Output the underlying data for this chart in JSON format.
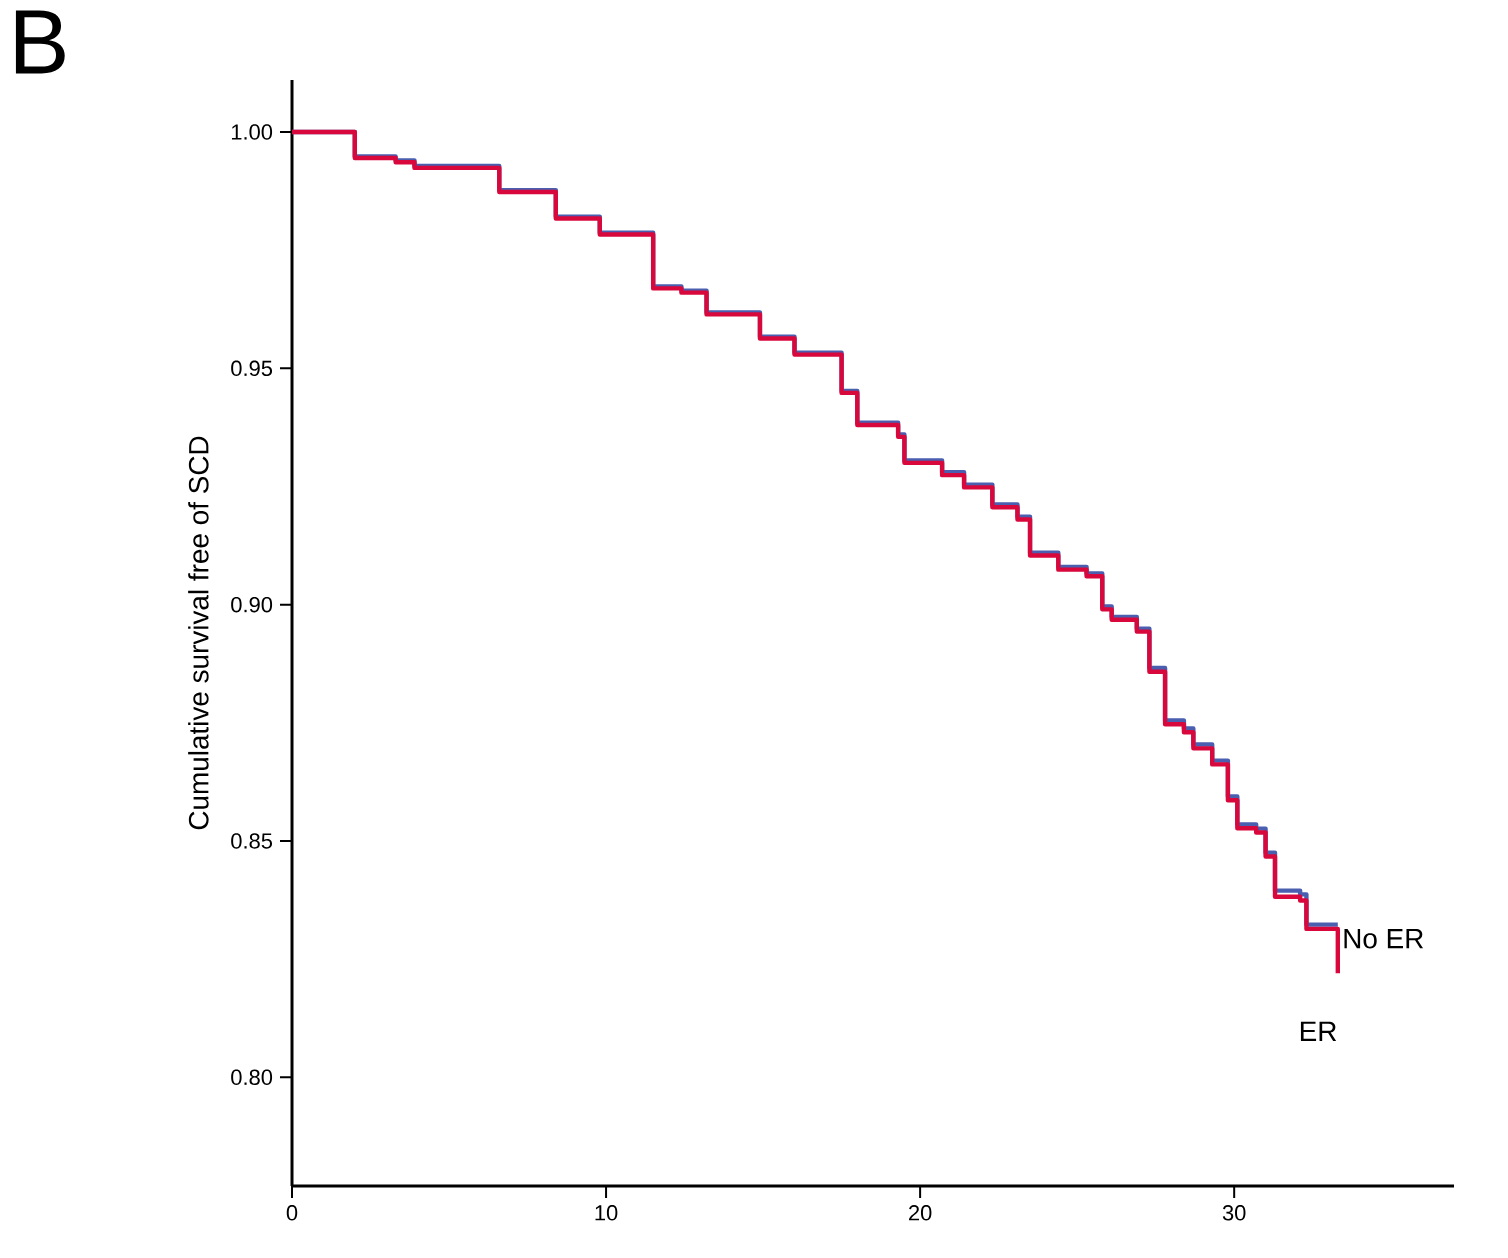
{
  "chart_data": {
    "type": "step",
    "title": "B",
    "ylabel": "Cumulative survival free of SCD",
    "xlim": [
      0,
      37
    ],
    "ylim": [
      0.777,
      1.011
    ],
    "xticks": [
      0,
      10,
      20,
      30
    ],
    "yticks": [
      {
        "value": 0.8,
        "label": "0.80"
      },
      {
        "value": 0.85,
        "label": "0.85"
      },
      {
        "value": 0.9,
        "label": "0.90"
      },
      {
        "value": 0.95,
        "label": "0.95"
      },
      {
        "value": 1.0,
        "label": "1.00"
      }
    ],
    "grid": false,
    "legend": false,
    "marker": "none",
    "line_style": "solid",
    "series": [
      {
        "name": "No ER",
        "color": "#4a5fb0",
        "x": [
          0,
          2.0,
          3.3,
          3.9,
          6.6,
          8.4,
          9.8,
          11.5,
          12.4,
          13.2,
          14.9,
          16.0,
          17.5,
          18.0,
          19.3,
          19.5,
          20.7,
          21.4,
          22.3,
          23.1,
          23.5,
          24.4,
          25.3,
          25.8,
          26.1,
          26.9,
          27.3,
          27.8,
          28.4,
          28.7,
          29.3,
          29.8,
          30.1,
          30.7,
          31.0,
          31.3,
          32.1,
          32.3,
          33.3
        ],
        "values": [
          1.0,
          0.9948,
          0.994,
          0.9928,
          0.9877,
          0.9821,
          0.9787,
          0.9673,
          0.9664,
          0.9618,
          0.9567,
          0.9533,
          0.9452,
          0.9385,
          0.936,
          0.9305,
          0.928,
          0.9254,
          0.9212,
          0.9186,
          0.911,
          0.908,
          0.9066,
          0.8996,
          0.8974,
          0.8949,
          0.8866,
          0.8755,
          0.8738,
          0.8704,
          0.867,
          0.8594,
          0.8535,
          0.8526,
          0.8475,
          0.8395,
          0.8387,
          0.8323,
          0.8323
        ]
      },
      {
        "name": "ER",
        "color": "#d9083c",
        "x": [
          0,
          2.0,
          3.3,
          3.9,
          6.6,
          8.4,
          9.8,
          11.5,
          12.4,
          13.2,
          14.9,
          16.0,
          17.5,
          18.0,
          19.3,
          19.5,
          20.7,
          21.4,
          22.3,
          23.1,
          23.5,
          24.4,
          25.3,
          25.8,
          26.1,
          26.9,
          27.3,
          27.8,
          28.4,
          28.7,
          29.3,
          29.8,
          30.1,
          30.7,
          31.0,
          31.3,
          32.1,
          32.3,
          33.3
        ],
        "values": [
          1.0,
          0.9945,
          0.9936,
          0.9924,
          0.9873,
          0.9817,
          0.9783,
          0.9669,
          0.966,
          0.9614,
          0.9563,
          0.9529,
          0.9448,
          0.938,
          0.9355,
          0.93,
          0.9274,
          0.9248,
          0.9206,
          0.918,
          0.9104,
          0.9074,
          0.906,
          0.899,
          0.8968,
          0.8943,
          0.8858,
          0.8747,
          0.873,
          0.8696,
          0.8662,
          0.8586,
          0.8527,
          0.8518,
          0.8467,
          0.8382,
          0.8374,
          0.8314,
          0.822
        ]
      }
    ]
  }
}
